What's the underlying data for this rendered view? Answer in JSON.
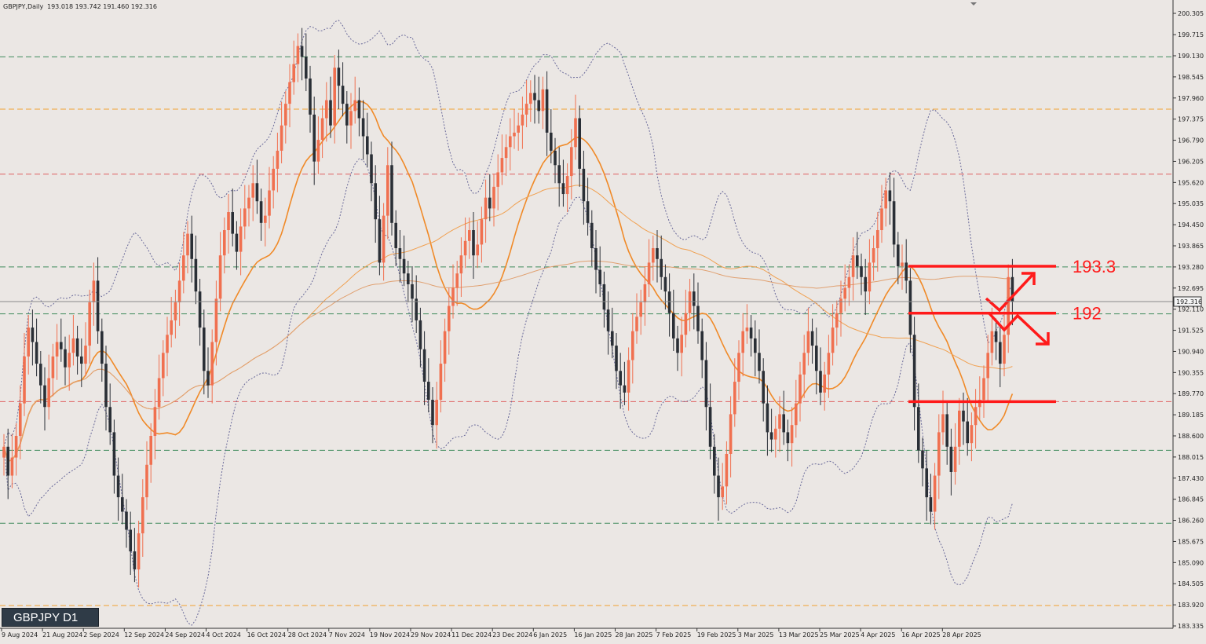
{
  "header": {
    "symbol": "GBPJPY,Daily",
    "ohlc": "193.018 193.742 191.460 192.316"
  },
  "badge": "GBPJPY D1",
  "chart_data": {
    "type": "candlestick",
    "symbol": "GBPJPY",
    "timeframe": "Daily",
    "current_price": 192.316,
    "ylim": [
      183.335,
      200.305
    ],
    "y_ticks": [
      200.305,
      199.715,
      199.13,
      198.545,
      197.96,
      197.375,
      196.79,
      196.205,
      195.62,
      195.035,
      194.45,
      193.865,
      193.28,
      192.695,
      192.11,
      191.525,
      190.94,
      190.355,
      189.77,
      189.185,
      188.6,
      188.015,
      187.43,
      186.845,
      186.26,
      185.675,
      185.09,
      184.505,
      183.92,
      183.335
    ],
    "y_tick_labels": [
      "200.305",
      "199.715",
      "199.130",
      "198.545",
      "197.960",
      "197.375",
      "196.790",
      "196.205",
      "195.620",
      "195.035",
      "194.450",
      "193.865",
      "193.280",
      "192.695",
      "192.110",
      "191.525",
      "190.940",
      "190.355",
      "189.770",
      "189.185",
      "188.600",
      "188.015",
      "187.430",
      "186.845",
      "186.260",
      "185.675",
      "185.090",
      "184.505",
      "183.920",
      "183.335"
    ],
    "x_labels": [
      "9 Aug 2024",
      "21 Aug 2024",
      "2 Sep 2024",
      "12 Sep 2024",
      "24 Sep 2024",
      "4 Oct 2024",
      "16 Oct 2024",
      "28 Oct 2024",
      "7 Nov 2024",
      "19 Nov 2024",
      "29 Nov 2024",
      "11 Dec 2024",
      "23 Dec 2024",
      "6 Jan 2025",
      "16 Jan 2025",
      "28 Jan 2025",
      "7 Feb 2025",
      "19 Feb 2025",
      "3 Mar 2025",
      "13 Mar 2025",
      "25 Mar 2025",
      "4 Apr 2025",
      "16 Apr 2025",
      "28 Apr 2025"
    ],
    "horizontal_levels": [
      {
        "price": 199.1,
        "color": "#3f8a5c"
      },
      {
        "price": 197.65,
        "color": "#f0a030"
      },
      {
        "price": 195.85,
        "color": "#e06060"
      },
      {
        "price": 193.28,
        "color": "#3f8a5c"
      },
      {
        "price": 191.98,
        "color": "#3f8a5c"
      },
      {
        "price": 189.55,
        "color": "#e06060"
      },
      {
        "price": 188.2,
        "color": "#3f8a5c"
      },
      {
        "price": 186.18,
        "color": "#3f8a5c"
      },
      {
        "price": 183.9,
        "color": "#f0a030"
      }
    ],
    "annotations": [
      {
        "text": "193.3",
        "price": 193.3
      },
      {
        "text": "192",
        "price": 192.0
      },
      {
        "text": "",
        "price": 189.55
      }
    ],
    "closes": [
      188.3,
      187.5,
      188.0,
      188.6,
      189.5,
      190.8,
      191.6,
      191.2,
      190.6,
      190.0,
      189.4,
      190.2,
      190.8,
      191.2,
      191.0,
      190.5,
      190.9,
      191.3,
      190.8,
      190.6,
      191.1,
      192.3,
      192.9,
      191.5,
      190.6,
      189.4,
      188.7,
      187.5,
      186.9,
      186.5,
      186.0,
      185.4,
      184.9,
      185.9,
      186.9,
      187.8,
      188.6,
      189.4,
      190.2,
      190.9,
      191.4,
      191.8,
      192.3,
      192.9,
      193.6,
      194.2,
      193.5,
      192.6,
      191.6,
      190.4,
      190.0,
      191.2,
      192.4,
      193.6,
      194.3,
      194.8,
      194.2,
      193.7,
      194.4,
      194.9,
      195.2,
      195.6,
      195.1,
      194.5,
      194.7,
      195.4,
      196.0,
      196.5,
      197.2,
      197.8,
      198.4,
      198.9,
      199.4,
      199.1,
      198.5,
      197.5,
      196.2,
      196.8,
      197.4,
      197.9,
      197.2,
      198.8,
      198.3,
      197.8,
      197.2,
      197.6,
      197.9,
      197.4,
      196.9,
      196.4,
      195.6,
      194.6,
      193.4,
      194.7,
      196.1,
      194.5,
      193.8,
      193.5,
      193.1,
      192.8,
      192.4,
      191.8,
      191.0,
      190.1,
      189.6,
      188.9,
      189.6,
      190.6,
      191.5,
      192.2,
      192.7,
      193.1,
      193.6,
      194.0,
      194.3,
      193.6,
      193.9,
      194.6,
      195.2,
      194.9,
      195.5,
      195.9,
      196.3,
      196.6,
      196.9,
      197.0,
      197.2,
      197.5,
      197.8,
      198.1,
      197.9,
      197.6,
      198.2,
      197.0,
      196.5,
      196.1,
      195.6,
      195.3,
      195.8,
      196.6,
      197.4,
      196.0,
      195.1,
      194.5,
      193.8,
      193.2,
      192.8,
      192.1,
      191.5,
      191.1,
      190.4,
      190.0,
      189.8,
      190.7,
      191.5,
      191.9,
      192.3,
      192.8,
      193.4,
      193.8,
      193.5,
      193.0,
      192.6,
      192.0,
      191.3,
      190.9,
      191.4,
      192.0,
      192.6,
      192.2,
      191.5,
      190.7,
      189.4,
      188.3,
      187.5,
      186.9,
      187.2,
      188.1,
      189.2,
      190.1,
      190.9,
      191.5,
      191.6,
      191.3,
      190.9,
      190.4,
      189.5,
      188.7,
      188.5,
      188.8,
      189.2,
      188.7,
      188.4,
      188.9,
      189.5,
      190.3,
      190.9,
      191.5,
      191.1,
      190.4,
      189.8,
      190.3,
      190.9,
      191.6,
      192.0,
      192.4,
      192.7,
      193.0,
      193.6,
      193.3,
      193.0,
      192.6,
      193.4,
      193.8,
      194.3,
      194.9,
      195.4,
      195.1,
      193.9,
      193.3,
      193.4,
      192.9,
      191.4,
      189.4,
      188.2,
      187.7,
      186.9,
      186.5,
      187.5,
      188.7,
      189.2,
      188.3,
      187.6,
      188.3,
      189.3,
      189.0,
      188.4,
      188.9,
      189.4,
      189.6,
      190.2,
      190.9,
      191.5,
      191.2,
      190.6,
      191.4,
      193.0,
      192.316
    ]
  }
}
